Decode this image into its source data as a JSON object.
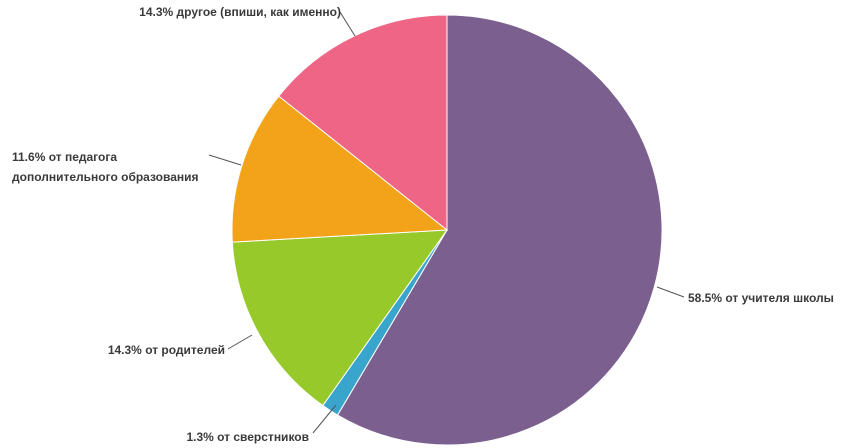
{
  "chart_data": {
    "type": "pie",
    "slices": [
      {
        "name": "от учителя школы",
        "value": 58.5,
        "label": "58.5% от учителя школы",
        "color": "#7b5f8f"
      },
      {
        "name": "от сверстников",
        "value": 1.3,
        "label": "1.3% от сверстников",
        "color": "#3aa5cc"
      },
      {
        "name": "от родителей",
        "value": 14.3,
        "label": "14.3% от родителей",
        "color": "#97c92a"
      },
      {
        "name": "от педагога дополнительного образования",
        "value": 11.6,
        "label_lines": [
          "11.6% от педагога",
          "дополнительного образования"
        ],
        "color": "#f2a31a"
      },
      {
        "name": "другое (впиши, как именно)",
        "value": 14.3,
        "label": "14.3% другое (впиши, как именно)",
        "color": "#ef6585"
      }
    ],
    "title": "",
    "legend": "none"
  }
}
